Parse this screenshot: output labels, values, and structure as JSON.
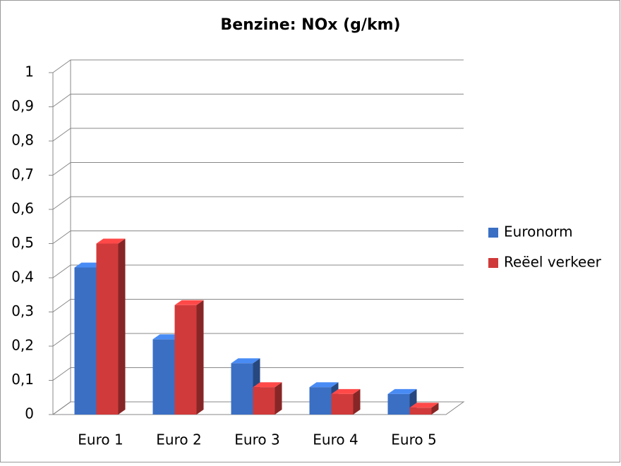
{
  "chart_data": {
    "type": "bar3d",
    "title": "Benzine: NOx (g/km)",
    "categories": [
      "Euro 1",
      "Euro 2",
      "Euro 3",
      "Euro 4",
      "Euro 5"
    ],
    "series": [
      {
        "name": "Euronorm",
        "color": "#3a6fc4",
        "values": [
          0.43,
          0.22,
          0.15,
          0.08,
          0.06
        ]
      },
      {
        "name": "Reëel verkeer",
        "color": "#d03a3a",
        "values": [
          0.5,
          0.32,
          0.08,
          0.06,
          0.02
        ]
      }
    ],
    "ylim": [
      0,
      1
    ],
    "yticks": [
      0,
      {
        "value": 0.1,
        "label": "0,1"
      },
      {
        "value": 0.2,
        "label": "0,2"
      },
      {
        "value": 0.3,
        "label": "0,3"
      },
      {
        "value": 0.4,
        "label": "0,4"
      },
      {
        "value": 0.5,
        "label": "0,5"
      },
      {
        "value": 0.6,
        "label": "0,6"
      },
      {
        "value": 0.7,
        "label": "0,7"
      },
      {
        "value": 0.8,
        "label": "0,8"
      },
      {
        "value": 0.9,
        "label": "0,9"
      },
      1
    ],
    "grid": true,
    "legend": "right"
  }
}
